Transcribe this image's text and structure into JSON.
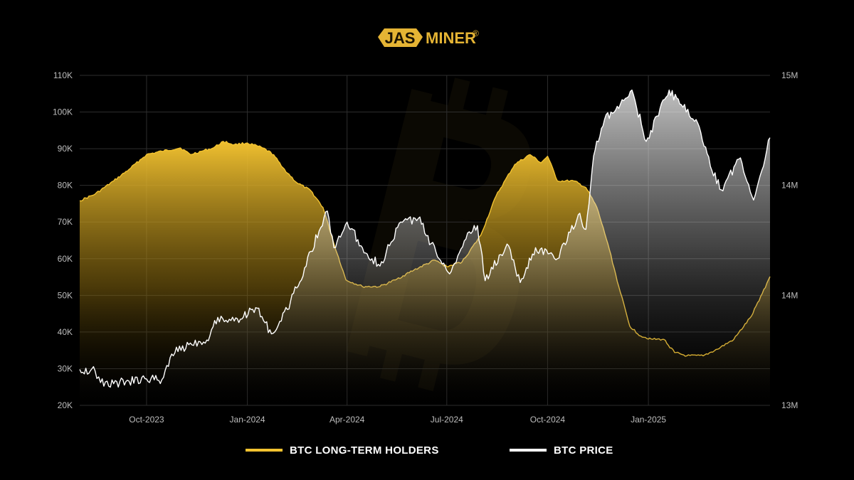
{
  "brand": {
    "logo_text": "JASMINER",
    "logo_prefix": "JAS",
    "logo_suffix": "MINER",
    "registered": "®"
  },
  "colors": {
    "background": "#000000",
    "holders": "#f2c230",
    "price": "#ffffff",
    "grid": "#2e2e2e",
    "brand": "#e5b434"
  },
  "legend": [
    {
      "label": "BTC LONG-TERM HOLDERS",
      "color": "#f2c230"
    },
    {
      "label": "BTC PRICE",
      "color": "#ffffff"
    }
  ],
  "chart_data": {
    "type": "area",
    "title": "",
    "xlabel": "",
    "ylabel": "",
    "grid": true,
    "legend_position": "bottom",
    "x_ticks": [
      "Oct-2023",
      "Jan-2024",
      "Apr-2024",
      "Jul-2024",
      "Oct-2024",
      "Jan-2025"
    ],
    "y_left_ticks": [
      "20K",
      "30K",
      "40K",
      "50K",
      "60K",
      "70K",
      "80K",
      "90K",
      "100K",
      "110K"
    ],
    "y_left_range": [
      20000,
      110000
    ],
    "y_right_ticks": [
      "13M",
      "14M",
      "14M",
      "15M"
    ],
    "y_right_range": [
      13000000,
      15000000
    ],
    "x_range": [
      "2023-08-01",
      "2025-04-22"
    ],
    "series": [
      {
        "name": "BTC LONG-TERM HOLDERS",
        "axis": "right",
        "color": "#f2c230",
        "points": [
          [
            "2023-08-01",
            14240000
          ],
          [
            "2023-08-15",
            14280000
          ],
          [
            "2023-09-01",
            14360000
          ],
          [
            "2023-09-15",
            14430000
          ],
          [
            "2023-10-01",
            14520000
          ],
          [
            "2023-10-15",
            14540000
          ],
          [
            "2023-11-01",
            14560000
          ],
          [
            "2023-11-10",
            14520000
          ],
          [
            "2023-11-20",
            14540000
          ],
          [
            "2023-12-01",
            14560000
          ],
          [
            "2023-12-10",
            14600000
          ],
          [
            "2023-12-20",
            14580000
          ],
          [
            "2024-01-01",
            14590000
          ],
          [
            "2024-01-15",
            14560000
          ],
          [
            "2024-01-25",
            14520000
          ],
          [
            "2024-02-01",
            14450000
          ],
          [
            "2024-02-15",
            14350000
          ],
          [
            "2024-02-28",
            14300000
          ],
          [
            "2024-03-10",
            14200000
          ],
          [
            "2024-03-20",
            13980000
          ],
          [
            "2024-03-31",
            13760000
          ],
          [
            "2024-04-15",
            13720000
          ],
          [
            "2024-05-01",
            13720000
          ],
          [
            "2024-05-15",
            13760000
          ],
          [
            "2024-06-01",
            13820000
          ],
          [
            "2024-06-20",
            13880000
          ],
          [
            "2024-07-01",
            13840000
          ],
          [
            "2024-07-15",
            13870000
          ],
          [
            "2024-08-01",
            14030000
          ],
          [
            "2024-08-15",
            14270000
          ],
          [
            "2024-09-01",
            14460000
          ],
          [
            "2024-09-15",
            14520000
          ],
          [
            "2024-09-25",
            14470000
          ],
          [
            "2024-10-01",
            14510000
          ],
          [
            "2024-10-10",
            14360000
          ],
          [
            "2024-10-25",
            14360000
          ],
          [
            "2024-11-05",
            14320000
          ],
          [
            "2024-11-15",
            14200000
          ],
          [
            "2024-11-25",
            13980000
          ],
          [
            "2024-12-05",
            13720000
          ],
          [
            "2024-12-15",
            13480000
          ],
          [
            "2024-12-25",
            13420000
          ],
          [
            "2025-01-05",
            13400000
          ],
          [
            "2025-01-15",
            13400000
          ],
          [
            "2025-01-25",
            13320000
          ],
          [
            "2025-02-05",
            13300000
          ],
          [
            "2025-02-20",
            13300000
          ],
          [
            "2025-03-05",
            13340000
          ],
          [
            "2025-03-20",
            13400000
          ],
          [
            "2025-04-05",
            13540000
          ],
          [
            "2025-04-22",
            13780000
          ]
        ]
      },
      {
        "name": "BTC PRICE",
        "axis": "left",
        "color": "#ffffff",
        "points": [
          [
            "2023-08-01",
            29800
          ],
          [
            "2023-08-15",
            29400
          ],
          [
            "2023-08-20",
            26200
          ],
          [
            "2023-09-01",
            25900
          ],
          [
            "2023-09-15",
            26600
          ],
          [
            "2023-10-01",
            27200
          ],
          [
            "2023-10-15",
            27000
          ],
          [
            "2023-10-24",
            34000
          ],
          [
            "2023-11-10",
            37000
          ],
          [
            "2023-11-25",
            37800
          ],
          [
            "2023-12-05",
            44000
          ],
          [
            "2023-12-20",
            43000
          ],
          [
            "2024-01-10",
            46500
          ],
          [
            "2024-01-23",
            39500
          ],
          [
            "2024-02-01",
            43000
          ],
          [
            "2024-02-15",
            52000
          ],
          [
            "2024-02-28",
            62000
          ],
          [
            "2024-03-14",
            73000
          ],
          [
            "2024-03-20",
            63000
          ],
          [
            "2024-04-01",
            70000
          ],
          [
            "2024-04-15",
            63000
          ],
          [
            "2024-05-01",
            58000
          ],
          [
            "2024-05-20",
            70000
          ],
          [
            "2024-06-05",
            71000
          ],
          [
            "2024-06-24",
            60000
          ],
          [
            "2024-07-05",
            56500
          ],
          [
            "2024-07-20",
            67000
          ],
          [
            "2024-07-29",
            69000
          ],
          [
            "2024-08-05",
            54000
          ],
          [
            "2024-08-25",
            64000
          ],
          [
            "2024-09-06",
            53500
          ],
          [
            "2024-09-20",
            63000
          ],
          [
            "2024-10-10",
            60000
          ],
          [
            "2024-10-29",
            72000
          ],
          [
            "2024-11-05",
            68000
          ],
          [
            "2024-11-12",
            88000
          ],
          [
            "2024-11-22",
            98000
          ],
          [
            "2024-12-05",
            101000
          ],
          [
            "2024-12-17",
            106000
          ],
          [
            "2024-12-30",
            92000
          ],
          [
            "2025-01-20",
            106000
          ],
          [
            "2025-01-31",
            102000
          ],
          [
            "2025-02-15",
            97000
          ],
          [
            "2025-02-28",
            84000
          ],
          [
            "2025-03-10",
            78500
          ],
          [
            "2025-03-20",
            85000
          ],
          [
            "2025-03-26",
            87500
          ],
          [
            "2025-04-07",
            76000
          ],
          [
            "2025-04-22",
            93000
          ]
        ]
      }
    ]
  }
}
